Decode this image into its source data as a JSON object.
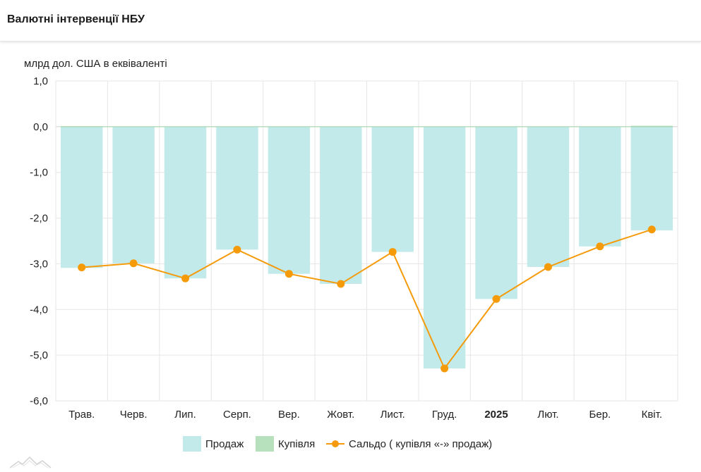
{
  "header": {
    "title": "Валютні інтервенції НБУ"
  },
  "chart_data": {
    "type": "bar",
    "ylabel": "млрд дол. США в еквіваленті",
    "ylim": [
      -6.0,
      1.0
    ],
    "yticks": [
      1.0,
      0.0,
      -1.0,
      -2.0,
      -3.0,
      -4.0,
      -5.0,
      -6.0
    ],
    "ytick_labels": [
      "1,0",
      "0,0",
      "-1,0",
      "-2,0",
      "-3,0",
      "-4,0",
      "-5,0",
      "-6,0"
    ],
    "categories": [
      "Трав.",
      "Черв.",
      "Лип.",
      "Серп.",
      "Вер.",
      "Жовт.",
      "Лист.",
      "Груд.",
      "2025",
      "Лют.",
      "Бер.",
      "Квіт."
    ],
    "bold_categories": [
      "2025"
    ],
    "grid": true,
    "legend_position": "bottom-center",
    "series": [
      {
        "name": "Продаж",
        "type": "bar",
        "color": "#c2eaea",
        "values": [
          -3.09,
          -2.99,
          -3.32,
          -2.69,
          -3.22,
          -3.44,
          -2.74,
          -5.29,
          -3.77,
          -3.07,
          -2.62,
          -2.27
        ]
      },
      {
        "name": "Купівля",
        "type": "bar",
        "color": "#b7e1bd",
        "values": [
          0.01,
          0.0,
          0.0,
          0.0,
          0.0,
          0.0,
          0.0,
          0.0,
          0.0,
          0.0,
          0.0,
          0.02
        ]
      },
      {
        "name": "Сальдо ( купівля «-» продаж)",
        "type": "line",
        "color": "#f59b0a",
        "values": [
          -3.08,
          -2.99,
          -3.32,
          -2.69,
          -3.22,
          -3.44,
          -2.74,
          -5.29,
          -3.77,
          -3.07,
          -2.62,
          -2.25
        ]
      }
    ]
  }
}
